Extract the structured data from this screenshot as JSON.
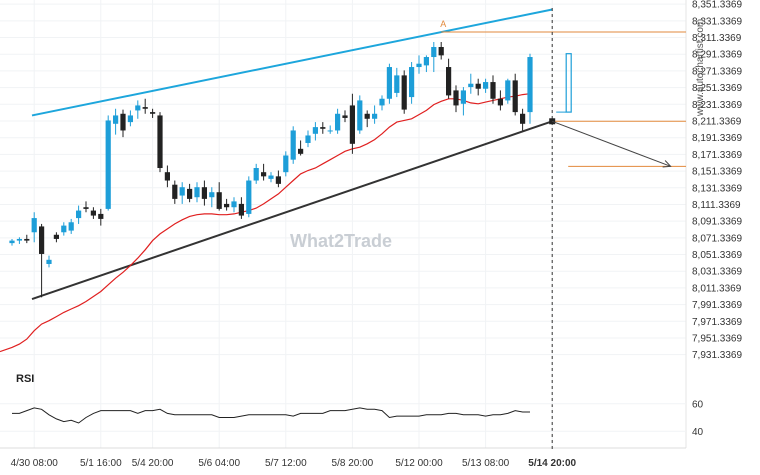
{
  "chart_data": {
    "type": "candlestick",
    "y_ticks": [
      "8,351.3369",
      "8,331.3369",
      "8,311.3369",
      "8,291.3369",
      "8,271.3369",
      "8,251.3369",
      "8,231.3369",
      "8,211.3369",
      "8,191.3369",
      "8,171.3369",
      "8,151.3369",
      "8,131.3369",
      "8,111.3369",
      "8,091.3369",
      "8,071.3369",
      "8,051.3369",
      "8,031.3369",
      "8,011.3369",
      "7,991.3369",
      "7,971.3369",
      "7,951.3369",
      "7,931.3369"
    ],
    "ylim": [
      7921.3369,
      8356.3369
    ],
    "x_ticks": [
      {
        "label": "4/30 08:00",
        "index": 3
      },
      {
        "label": "5/1 16:00",
        "index": 12
      },
      {
        "label": "5/4 20:00",
        "index": 19
      },
      {
        "label": "5/6 04:00",
        "index": 28
      },
      {
        "label": "5/7 12:00",
        "index": 37
      },
      {
        "label": "5/8 20:00",
        "index": 46
      },
      {
        "label": "5/12 00:00",
        "index": 55
      },
      {
        "label": "5/13 08:00",
        "index": 64
      },
      {
        "label": "5/14 20:00",
        "index": 73,
        "bold": true
      }
    ],
    "candles": [
      [
        8065,
        8070,
        8062,
        8068
      ],
      [
        8068,
        8072,
        8064,
        8070
      ],
      [
        8070,
        8075,
        8065,
        8068
      ],
      [
        8078,
        8102,
        8066,
        8095
      ],
      [
        8085,
        8088,
        8000,
        8052
      ],
      [
        8040,
        8050,
        8036,
        8045
      ],
      [
        8075,
        8078,
        8066,
        8070
      ],
      [
        8078,
        8090,
        8074,
        8086
      ],
      [
        8080,
        8094,
        8076,
        8090
      ],
      [
        8095,
        8110,
        8088,
        8104
      ],
      [
        8108,
        8115,
        8102,
        8106
      ],
      [
        8104,
        8108,
        8094,
        8098
      ],
      [
        8100,
        8106,
        8086,
        8094
      ],
      [
        8106,
        8218,
        8104,
        8212
      ],
      [
        8208,
        8226,
        8195,
        8218
      ],
      [
        8220,
        8225,
        8192,
        8200
      ],
      [
        8210,
        8224,
        8205,
        8218
      ],
      [
        8224,
        8236,
        8214,
        8230
      ],
      [
        8228,
        8238,
        8220,
        8226
      ],
      [
        8222,
        8226,
        8215,
        8220
      ],
      [
        8218,
        8222,
        8150,
        8155
      ],
      [
        8150,
        8158,
        8132,
        8140
      ],
      [
        8135,
        8140,
        8112,
        8118
      ],
      [
        8122,
        8138,
        8112,
        8132
      ],
      [
        8130,
        8136,
        8114,
        8118
      ],
      [
        8120,
        8138,
        8114,
        8132
      ],
      [
        8132,
        8140,
        8110,
        8118
      ],
      [
        8120,
        8132,
        8108,
        8126
      ],
      [
        8126,
        8138,
        8104,
        8106
      ],
      [
        8112,
        8118,
        8104,
        8108
      ],
      [
        8108,
        8120,
        8102,
        8115
      ],
      [
        8112,
        8120,
        8094,
        8098
      ],
      [
        8100,
        8145,
        8096,
        8140
      ],
      [
        8140,
        8160,
        8136,
        8155
      ],
      [
        8150,
        8160,
        8140,
        8145
      ],
      [
        8142,
        8150,
        8138,
        8146
      ],
      [
        8145,
        8152,
        8132,
        8136
      ],
      [
        8150,
        8175,
        8145,
        8170
      ],
      [
        8165,
        8205,
        8160,
        8200
      ],
      [
        8178,
        8188,
        8170,
        8172
      ],
      [
        8185,
        8200,
        8180,
        8194
      ],
      [
        8196,
        8210,
        8188,
        8204
      ],
      [
        8204,
        8210,
        8196,
        8202
      ],
      [
        8200,
        8206,
        8196,
        8200
      ],
      [
        8200,
        8226,
        8196,
        8220
      ],
      [
        8218,
        8224,
        8210,
        8215
      ],
      [
        8230,
        8244,
        8172,
        8184
      ],
      [
        8200,
        8242,
        8196,
        8236
      ],
      [
        8220,
        8224,
        8204,
        8214
      ],
      [
        8214,
        8230,
        8208,
        8220
      ],
      [
        8230,
        8242,
        8224,
        8238
      ],
      [
        8238,
        8280,
        8232,
        8276
      ],
      [
        8245,
        8275,
        8240,
        8266
      ],
      [
        8266,
        8272,
        8220,
        8225
      ],
      [
        8240,
        8282,
        8232,
        8276
      ],
      [
        8276,
        8290,
        8268,
        8280
      ],
      [
        8278,
        8290,
        8270,
        8288
      ],
      [
        8288,
        8306,
        8270,
        8300
      ],
      [
        8300,
        8306,
        8285,
        8290
      ],
      [
        8276,
        8286,
        8238,
        8242
      ],
      [
        8248,
        8254,
        8222,
        8230
      ],
      [
        8232,
        8252,
        8218,
        8248
      ],
      [
        8252,
        8268,
        8244,
        8256
      ],
      [
        8256,
        8262,
        8242,
        8250
      ],
      [
        8250,
        8262,
        8245,
        8258
      ],
      [
        8258,
        8266,
        8232,
        8238
      ],
      [
        8238,
        8248,
        8224,
        8230
      ],
      [
        8236,
        8262,
        8232,
        8260
      ],
      [
        8260,
        8268,
        8218,
        8222
      ],
      [
        8220,
        8226,
        8200,
        8208
      ],
      [
        8222,
        8292,
        8208,
        8288
      ]
    ],
    "ma": [
      7940,
      7944,
      7950,
      7960,
      7968,
      7972,
      7977,
      7982,
      7986,
      7990,
      7995,
      8001,
      8007,
      8015,
      8023,
      8030,
      8038,
      8047,
      8057,
      8068,
      8076,
      8082,
      8088,
      8093,
      8097,
      8099,
      8100,
      8100,
      8099,
      8099,
      8100,
      8102,
      8104,
      8107,
      8112,
      8118,
      8124,
      8132,
      8140,
      8148,
      8152,
      8155,
      8160,
      8165,
      8170,
      8175,
      8178,
      8180,
      8184,
      8189,
      8196,
      8204,
      8210,
      8212,
      8214,
      8219,
      8224,
      8231,
      8235,
      8238,
      8238,
      8236,
      8233,
      8232,
      8234,
      8236,
      8238,
      8240,
      8241,
      8243,
      8244
    ],
    "rsi": [
      53,
      53,
      55,
      57,
      56,
      52,
      49,
      47,
      48,
      46,
      50,
      53,
      55,
      55,
      55,
      55,
      55,
      53,
      55,
      55,
      56,
      53,
      52,
      52,
      52,
      52,
      52,
      52,
      50,
      50,
      50,
      51,
      52,
      52,
      52,
      52,
      52,
      52,
      51,
      53,
      53,
      53,
      53,
      55,
      55,
      55,
      56,
      57,
      56,
      56,
      55,
      50,
      51,
      51,
      51,
      51,
      52,
      52,
      52,
      53,
      53,
      52,
      52,
      52,
      51,
      52,
      52,
      53,
      55,
      54,
      54
    ],
    "rsi_ticks": [
      "60",
      "40"
    ],
    "rsi_ylim": [
      30,
      70
    ],
    "rsi_label": "RSI",
    "upper_trendline": [
      [
        0,
        8218
      ],
      [
        73,
        8345
      ]
    ],
    "lower_trendline": [
      [
        0,
        7998
      ],
      [
        73,
        8211
      ]
    ],
    "resistance_level": 8318,
    "support_level": 8211,
    "target_level": 8157,
    "forecast_arrow": [
      [
        73,
        8211
      ],
      [
        89,
        8157
      ]
    ],
    "projection_box": [
      8222,
      8292
    ],
    "marker_label": "A",
    "marker_index": 58,
    "colors": {
      "up": "#1d9ed8",
      "down": "#222222",
      "ma": "#e02020",
      "upper_line": "#1da6dc",
      "lower_line": "#333333",
      "level": "#e28a3c",
      "arrow": "#444444"
    }
  },
  "watermark": "What2Trade",
  "brand": "www.autochartist.com"
}
